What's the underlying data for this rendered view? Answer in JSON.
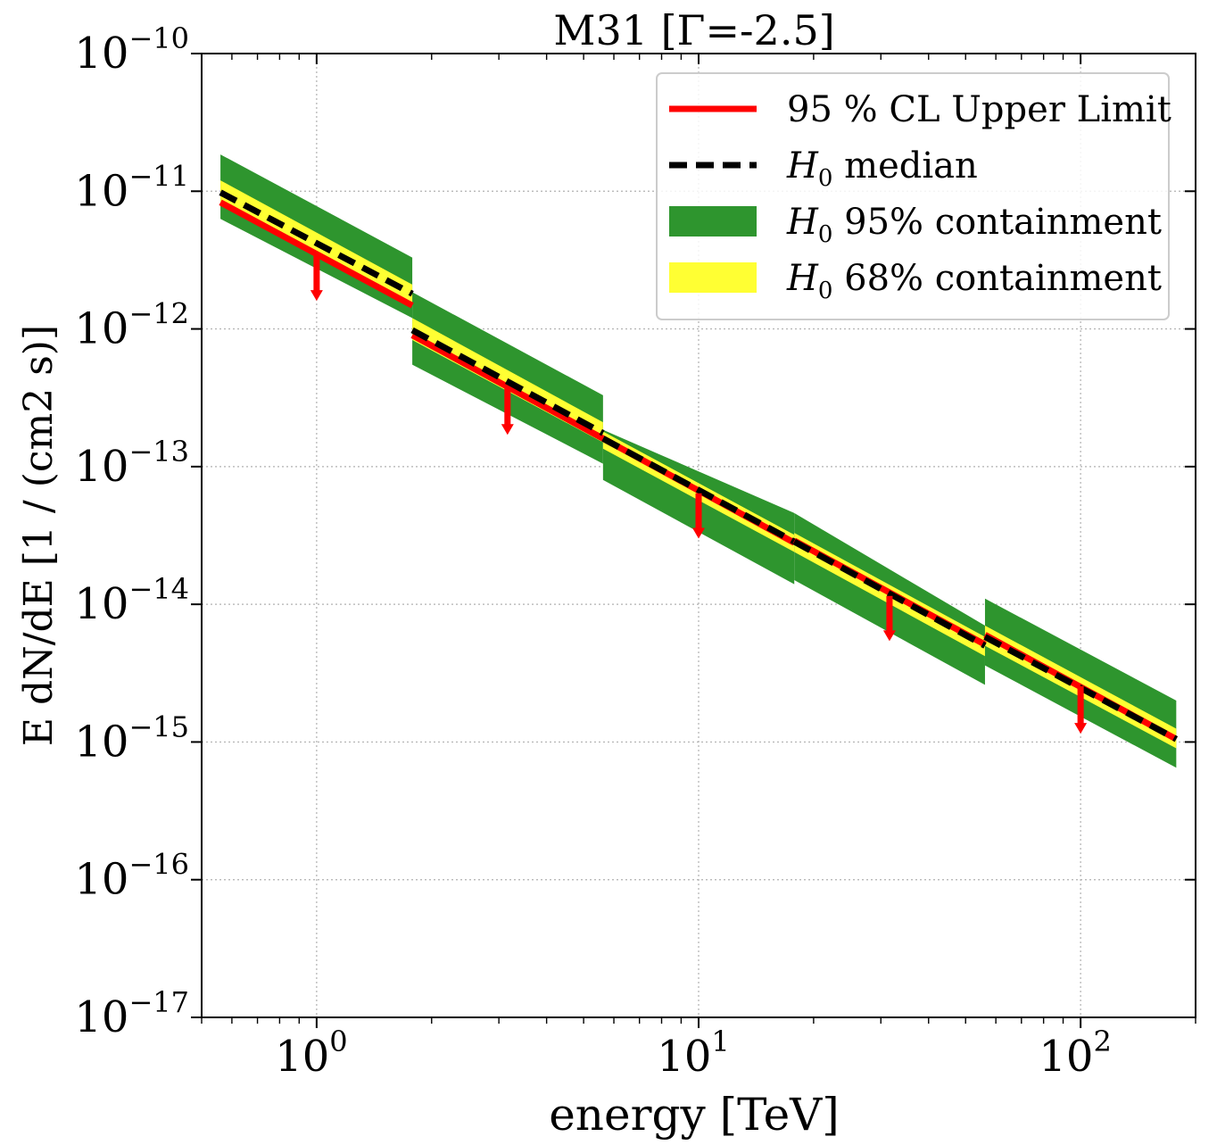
{
  "chart_data": {
    "type": "line",
    "title": "M31 [Γ=-2.5]",
    "xlabel": "energy [TeV]",
    "ylabel": "E dN/dE   [1 / (cm2 s)]",
    "x_scale": "log",
    "y_scale": "log",
    "xlim": [
      0.5,
      200
    ],
    "ylim": [
      1e-17,
      1e-10
    ],
    "grid": true,
    "legend_position": "top-right",
    "x_ticks": [
      {
        "value": 1,
        "base": "10",
        "exp": "0"
      },
      {
        "value": 10,
        "base": "10",
        "exp": "1"
      },
      {
        "value": 100,
        "base": "10",
        "exp": "2"
      }
    ],
    "y_ticks": [
      {
        "value": 1e-10,
        "base": "10",
        "exp": "−10"
      },
      {
        "value": 1e-11,
        "base": "10",
        "exp": "−11"
      },
      {
        "value": 1e-12,
        "base": "10",
        "exp": "−12"
      },
      {
        "value": 1e-13,
        "base": "10",
        "exp": "−13"
      },
      {
        "value": 1e-14,
        "base": "10",
        "exp": "−14"
      },
      {
        "value": 1e-15,
        "base": "10",
        "exp": "−15"
      },
      {
        "value": 1e-16,
        "base": "10",
        "exp": "−16"
      },
      {
        "value": 1e-17,
        "base": "10",
        "exp": "−17"
      }
    ],
    "legend": [
      {
        "label": "95 % CL Upper Limit",
        "kind": "line",
        "color": "#ff0000"
      },
      {
        "label": "median",
        "prefix": "H",
        "subscript": "0",
        "kind": "dashed",
        "color": "#000000"
      },
      {
        "label": "95% containment",
        "prefix": "H",
        "subscript": "0",
        "kind": "patch",
        "color": "#2e952e"
      },
      {
        "label": "68% containment",
        "prefix": "H",
        "subscript": "0",
        "kind": "patch",
        "color": "#ffff33"
      }
    ],
    "colors": {
      "upper_limit": "#ff0000",
      "median": "#000000",
      "band95": "#2e952e",
      "band68": "#ffff33"
    },
    "bins": [
      {
        "e_min": 0.56,
        "e_max": 1.78,
        "e_ref": 1.0,
        "ul_start": 8.3e-12,
        "ul_end": 1.48e-12,
        "ul_ref": 3.5e-12,
        "med_start": 9.8e-12,
        "med_end": 1.8e-12,
        "b95_lo_start": 6.3e-12,
        "b95_lo_end": 1.2e-12,
        "b95_hi_start": 1.85e-11,
        "b95_hi_end": 3.3e-12,
        "b68_lo_start": 8e-12,
        "b68_lo_end": 1.5e-12,
        "b68_hi_start": 1.2e-11,
        "b68_hi_end": 2.1e-12,
        "arrow_to": 1.6e-12
      },
      {
        "e_min": 1.78,
        "e_max": 5.62,
        "e_ref": 3.16,
        "ul_start": 9e-13,
        "ul_end": 1.6e-13,
        "ul_ref": 3.8e-13,
        "med_start": 9.8e-13,
        "med_end": 1.75e-13,
        "b95_lo_start": 5.5e-13,
        "b95_lo_end": 1.05e-13,
        "b95_hi_start": 1.85e-12,
        "b95_hi_end": 3.3e-13,
        "b68_lo_start": 8.3e-13,
        "b68_lo_end": 1.5e-13,
        "b68_hi_start": 1.2e-12,
        "b68_hi_end": 2.1e-13,
        "arrow_to": 1.7e-13
      },
      {
        "e_min": 5.62,
        "e_max": 17.8,
        "e_ref": 10.0,
        "ul_start": 1.6e-13,
        "ul_end": 2.8e-14,
        "ul_ref": 6.4e-14,
        "med_start": 1.6e-13,
        "med_end": 2.85e-14,
        "b95_lo_start": 8e-14,
        "b95_lo_end": 1.4e-14,
        "b95_hi_start": 1.85e-13,
        "b95_hi_end": 4.6e-14,
        "b68_lo_start": 1.35e-13,
        "b68_lo_end": 2.4e-14,
        "b68_hi_start": 1.8e-13,
        "b68_hi_end": 3.2e-14,
        "arrow_to": 3e-14
      },
      {
        "e_min": 17.8,
        "e_max": 56.2,
        "e_ref": 31.6,
        "ul_start": 2.9e-14,
        "ul_end": 5.1e-15,
        "ul_ref": 1.15e-14,
        "med_start": 2.85e-14,
        "med_end": 5e-15,
        "b95_lo_start": 1.5e-14,
        "b95_lo_end": 2.6e-15,
        "b95_hi_start": 4.6e-14,
        "b95_hi_end": 7e-15,
        "b68_lo_start": 2.4e-14,
        "b68_lo_end": 4.2e-15,
        "b68_hi_start": 3.3e-14,
        "b68_hi_end": 5.8e-15,
        "arrow_to": 5.4e-15
      },
      {
        "e_min": 56.2,
        "e_max": 178,
        "e_ref": 100.0,
        "ul_start": 6e-15,
        "ul_end": 1.05e-15,
        "ul_ref": 2.55e-15,
        "med_start": 5.8e-15,
        "med_end": 1.05e-15,
        "b95_lo_start": 3.6e-15,
        "b95_lo_end": 6.5e-16,
        "b95_hi_start": 1.1e-14,
        "b95_hi_end": 2e-15,
        "b68_lo_start": 5e-15,
        "b68_lo_end": 9e-16,
        "b68_hi_start": 7e-15,
        "b68_hi_end": 1.25e-15,
        "arrow_to": 1.15e-15
      }
    ]
  }
}
